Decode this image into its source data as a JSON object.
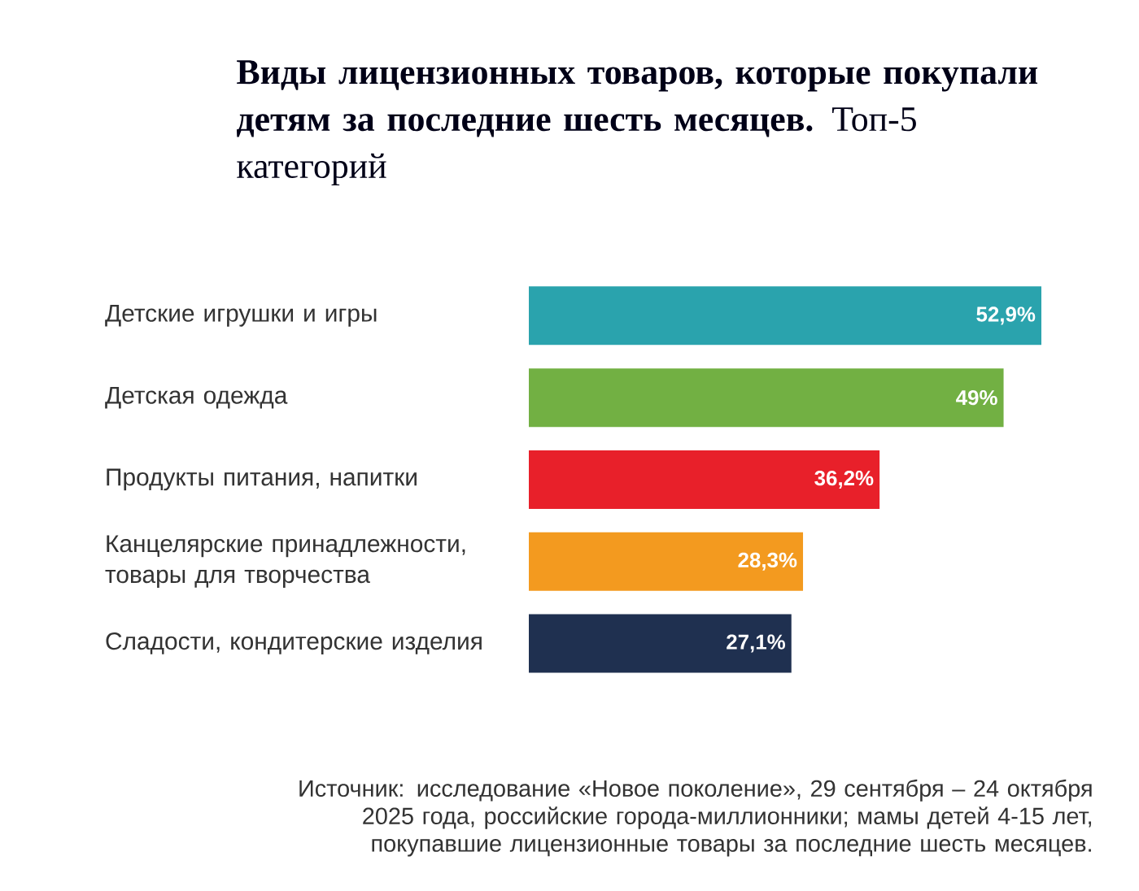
{
  "chart_data": {
    "type": "bar",
    "orientation": "horizontal",
    "title": "**Виды лицензионных товаров, которые покупали детям за последние шесть месяцев.** Топ-5 категорий",
    "categories": [
      "Детские игрушки и игры",
      "Детская одежда",
      "Продукты питания, напитки",
      "Канцелярские принадлежности, товары для творчества",
      "Сладости, кондитерские изделия"
    ],
    "values": [
      52.9,
      49,
      36.2,
      28.3,
      27.1
    ],
    "colors": [
      "#2aa3ad",
      "#72b043",
      "#e8202a",
      "#f39a1f",
      "#1f3050"
    ],
    "value_labels": [
      "52,9%",
      "49%",
      "36,2%",
      "28,3%",
      "27,1%"
    ],
    "annotations": [
      "Источник: исследование «Новое поколение», 29 сентября – 24 октября 2025 года, российские города-миллионники; мамы детей 4-15 лет, покупавшие лицензионные товары за последние шесть месяцев."
    ]
  }
}
